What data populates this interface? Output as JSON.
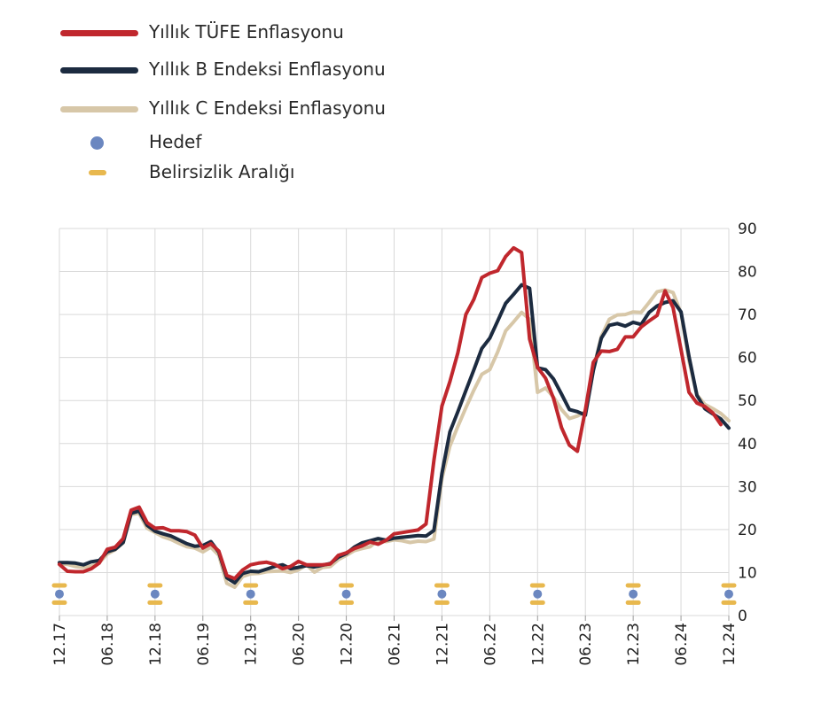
{
  "chart_data": {
    "type": "line",
    "title": "",
    "xlabel": "",
    "ylabel": "",
    "ylim": [
      0,
      90
    ],
    "y_axis_position": "right",
    "y_ticks": [
      0,
      10,
      20,
      30,
      40,
      50,
      60,
      70,
      80,
      90
    ],
    "x_ticks": [
      "12.17",
      "06.18",
      "12.18",
      "06.19",
      "12.19",
      "06.20",
      "12.20",
      "06.21",
      "12.21",
      "06.22",
      "12.22",
      "06.23",
      "12.23",
      "06.24",
      "12.24"
    ],
    "x_start": "12.17",
    "x_end": "12.24",
    "grid": true,
    "legend_position": "top-left",
    "series": [
      {
        "name": "Yıllık TÜFE Enflasyonu",
        "color": "#c0272d",
        "values": [
          11.9,
          10.3,
          10.2,
          10.2,
          10.9,
          12.2,
          15.4,
          15.9,
          17.9,
          24.5,
          25.2,
          21.6,
          20.3,
          20.4,
          19.7,
          19.7,
          19.5,
          18.7,
          15.7,
          16.7,
          15.0,
          9.3,
          8.6,
          10.6,
          11.8,
          12.2,
          12.4,
          11.9,
          10.9,
          11.4,
          12.6,
          11.8,
          11.8,
          11.8,
          12.0,
          14.0,
          14.6,
          15.6,
          16.2,
          17.1,
          16.6,
          17.5,
          19.0,
          19.3,
          19.6,
          19.9,
          21.3,
          36.1,
          48.7,
          54.4,
          61.1,
          70.0,
          73.5,
          78.6,
          79.6,
          80.2,
          83.5,
          85.5,
          84.4,
          64.3,
          57.7,
          55.2,
          50.5,
          43.7,
          39.6,
          38.2,
          47.8,
          58.9,
          61.5,
          61.4,
          61.9,
          64.8,
          64.8,
          67.1,
          68.5,
          69.8,
          75.5,
          71.6,
          61.8,
          51.9,
          49.4,
          48.6,
          47.1,
          44.4
        ]
      },
      {
        "name": "Yıllık B Endeksi Enflasyonu",
        "color": "#1c2b40",
        "values": [
          12.3,
          12.3,
          12.2,
          11.8,
          12.5,
          12.8,
          14.8,
          15.4,
          17.0,
          23.8,
          24.3,
          21.0,
          19.6,
          19.0,
          18.5,
          17.6,
          16.7,
          16.1,
          16.3,
          17.2,
          14.7,
          8.8,
          7.6,
          9.8,
          10.3,
          10.2,
          10.8,
          11.4,
          11.8,
          10.9,
          11.2,
          11.6,
          11.3,
          11.7,
          12.1,
          13.6,
          14.4,
          15.9,
          16.9,
          17.4,
          17.9,
          17.5,
          18.0,
          18.2,
          18.4,
          18.6,
          18.5,
          19.8,
          33.0,
          42.7,
          47.4,
          52.3,
          57.1,
          62.1,
          64.5,
          68.5,
          72.6,
          74.7,
          76.9,
          76.1,
          57.6,
          57.2,
          55.0,
          51.5,
          47.9,
          47.4,
          46.6,
          57.0,
          64.5,
          67.5,
          67.9,
          67.3,
          68.2,
          67.7,
          70.5,
          72.0,
          72.8,
          73.2,
          70.6,
          60.2,
          51.2,
          48.1,
          46.9,
          45.7,
          43.6
        ]
      },
      {
        "name": "Yıllık C Endeksi Enflasyonu",
        "color": "#d7c7a8",
        "values": [
          12.0,
          11.9,
          11.4,
          11.2,
          11.5,
          12.3,
          14.3,
          15.3,
          16.9,
          23.5,
          23.8,
          20.3,
          19.3,
          18.3,
          17.7,
          16.8,
          16.0,
          15.7,
          14.8,
          15.9,
          14.0,
          7.5,
          6.6,
          9.1,
          9.7,
          9.8,
          10.2,
          10.3,
          10.4,
          10.0,
          10.6,
          11.8,
          10.1,
          11.2,
          11.4,
          13.0,
          14.0,
          15.1,
          15.6,
          16.0,
          17.6,
          17.2,
          17.6,
          17.4,
          17.0,
          17.3,
          17.2,
          17.8,
          31.9,
          39.4,
          44.0,
          48.3,
          52.4,
          56.1,
          57.2,
          61.3,
          66.2,
          68.3,
          70.5,
          68.9,
          51.9,
          52.9,
          50.8,
          47.9,
          45.8,
          46.4,
          47.4,
          57.4,
          64.9,
          68.9,
          69.9,
          70.0,
          70.6,
          70.5,
          72.8,
          75.3,
          75.7,
          75.1,
          70.3,
          59.2,
          51.3,
          49.1,
          48.1,
          47.0,
          45.3
        ]
      }
    ],
    "target": {
      "name": "Hedef",
      "color": "#6b87c0",
      "x": [
        "12.17",
        "12.18",
        "12.19",
        "12.20",
        "12.21",
        "12.22",
        "12.23",
        "12.24"
      ],
      "values": [
        5,
        5,
        5,
        5,
        5,
        5,
        5,
        5
      ]
    },
    "uncertainty_band": {
      "name": "Belirsizlik Aralığı",
      "color": "#e8b84e",
      "x": [
        "12.17",
        "12.18",
        "12.19",
        "12.20",
        "12.21",
        "12.22",
        "12.23",
        "12.24"
      ],
      "lower": [
        3,
        3,
        3,
        3,
        3,
        3,
        3,
        3
      ],
      "upper": [
        7,
        7,
        7,
        7,
        7,
        7,
        7,
        7
      ]
    }
  },
  "legend": [
    {
      "label": "Yıllık TÜFE Enflasyonu",
      "kind": "line",
      "color": "#c0272d"
    },
    {
      "label": "Yıllık B Endeksi Enflasyonu",
      "kind": "line",
      "color": "#1c2b40"
    },
    {
      "label": "Yıllık C Endeksi Enflasyonu",
      "kind": "line",
      "color": "#d7c7a8"
    },
    {
      "label": "Hedef",
      "kind": "dot",
      "color": "#6b87c0"
    },
    {
      "label": "Belirsizlik Aralığı",
      "kind": "dash",
      "color": "#e8b84e"
    }
  ]
}
